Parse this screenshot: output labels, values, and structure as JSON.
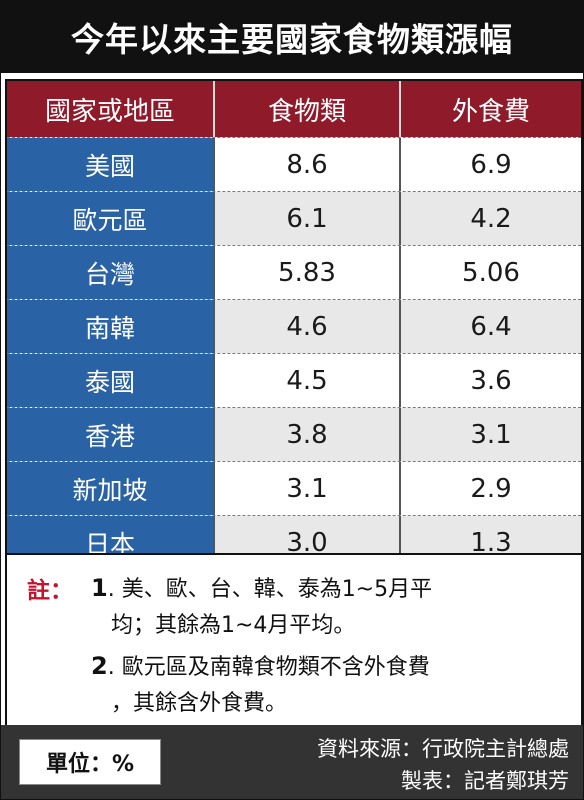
{
  "title": "今年以來主要國家食物類漲幅",
  "chart_data": {
    "type": "table",
    "columns": [
      "國家或地區",
      "食物類",
      "外食費"
    ],
    "rows": [
      {
        "name": "美國",
        "food": "8.6",
        "dining": "6.9"
      },
      {
        "name": "歐元區",
        "food": "6.1",
        "dining": "4.2"
      },
      {
        "name": "台灣",
        "food": "5.83",
        "dining": "5.06"
      },
      {
        "name": "南韓",
        "food": "4.6",
        "dining": "6.4"
      },
      {
        "name": "泰國",
        "food": "4.5",
        "dining": "3.6"
      },
      {
        "name": "香港",
        "food": "3.8",
        "dining": "3.1"
      },
      {
        "name": "新加坡",
        "food": "3.1",
        "dining": "2.9"
      },
      {
        "name": "日本",
        "food": "3.0",
        "dining": "1.3"
      }
    ]
  },
  "notes": {
    "label": "註：",
    "n1_num": "1",
    "n1_line1": ". 美、歐、台、韓、泰為1~5月平",
    "n1_line2": "均；其餘為1~4月平均。",
    "n2_num": "2",
    "n2_line1": ". 歐元區及南韓食物類不含外食費",
    "n2_line2": "，其餘含外食費。"
  },
  "footer": {
    "unit": "單位：%",
    "source": "資料來源：行政院主計總處",
    "maker": "製表：記者鄭琪芳"
  },
  "colors": {
    "title_bg": "#111111",
    "header_bg": "#8e1a2a",
    "name_col_bg": "#2a62a6",
    "note_label": "#c4122f",
    "footer_bg": "#333333"
  }
}
